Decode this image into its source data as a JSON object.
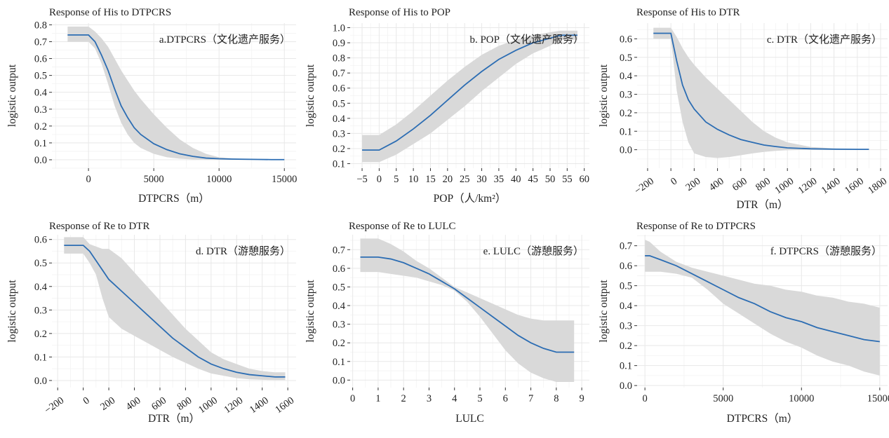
{
  "chart_data": [
    {
      "type": "line",
      "title": "Response of His to DTPCRS",
      "annotation": "a.DTPCRS（文化遗产服务）",
      "xlabel": "DTPCRS（m）",
      "ylabel": "logistic output",
      "xlim": [
        -2800,
        15900
      ],
      "ylim": [
        -0.05,
        0.81
      ],
      "xticks": [
        0,
        5000,
        10000,
        15000
      ],
      "xtick_labels": [
        "0",
        "5000",
        "10000",
        "15000"
      ],
      "yticks": [
        0.0,
        0.1,
        0.2,
        0.3,
        0.4,
        0.5,
        0.6,
        0.7,
        0.8
      ],
      "ytick_labels": [
        "0.0",
        "0.1",
        "0.2",
        "0.3",
        "0.4",
        "0.5",
        "0.6",
        "0.7",
        "0.8"
      ],
      "rotate_xticks": false,
      "series": [
        {
          "x": [
            -1600,
            0,
            500,
            1000,
            1500,
            2000,
            2500,
            3000,
            3500,
            4000,
            5000,
            6000,
            7000,
            8000,
            9000,
            10000,
            11000,
            12000,
            13000,
            14000,
            15000
          ],
          "y": [
            0.74,
            0.74,
            0.7,
            0.62,
            0.53,
            0.42,
            0.32,
            0.25,
            0.19,
            0.15,
            0.095,
            0.06,
            0.035,
            0.02,
            0.01,
            0.006,
            0.004,
            0.003,
            0.002,
            0.001,
            0.001
          ],
          "upper": [
            0.79,
            0.79,
            0.76,
            0.72,
            0.67,
            0.6,
            0.53,
            0.47,
            0.41,
            0.36,
            0.27,
            0.19,
            0.12,
            0.07,
            0.035,
            0.015,
            0.008,
            0.005,
            0.003,
            0.002,
            0.002
          ],
          "lower": [
            0.7,
            0.7,
            0.66,
            0.57,
            0.45,
            0.32,
            0.22,
            0.15,
            0.1,
            0.07,
            0.035,
            0.015,
            0.006,
            0.002,
            0.001,
            0.0,
            0.0,
            0.0,
            0.0,
            0.0,
            0.0
          ]
        }
      ]
    },
    {
      "type": "line",
      "title": "Response of His to POP",
      "annotation": "b. POP（文化遗产服务）",
      "xlabel": "POP（人/km²）",
      "ylabel": "logistic output",
      "xlim": [
        -8.5,
        61.5
      ],
      "ylim": [
        0.07,
        1.03
      ],
      "xticks": [
        -5,
        0,
        5,
        10,
        15,
        20,
        25,
        30,
        35,
        40,
        45,
        50,
        55,
        60
      ],
      "xtick_labels": [
        "−5",
        "0",
        "5",
        "10",
        "15",
        "20",
        "25",
        "30",
        "35",
        "40",
        "45",
        "50",
        "55",
        "60"
      ],
      "yticks": [
        0.1,
        0.2,
        0.3,
        0.4,
        0.5,
        0.6,
        0.7,
        0.8,
        0.9,
        1.0
      ],
      "ytick_labels": [
        "0.1",
        "0.2",
        "0.3",
        "0.4",
        "0.5",
        "0.6",
        "0.7",
        "0.8",
        "0.9",
        "1.0"
      ],
      "rotate_xticks": false,
      "series": [
        {
          "x": [
            -5,
            0,
            5,
            10,
            15,
            20,
            25,
            30,
            35,
            40,
            45,
            50,
            53,
            58
          ],
          "y": [
            0.19,
            0.19,
            0.25,
            0.33,
            0.42,
            0.52,
            0.62,
            0.71,
            0.79,
            0.85,
            0.9,
            0.93,
            0.95,
            0.95
          ],
          "upper": [
            0.29,
            0.29,
            0.36,
            0.45,
            0.55,
            0.65,
            0.74,
            0.82,
            0.88,
            0.92,
            0.95,
            0.97,
            0.98,
            0.98
          ],
          "lower": [
            0.11,
            0.11,
            0.16,
            0.23,
            0.3,
            0.39,
            0.48,
            0.58,
            0.67,
            0.76,
            0.83,
            0.88,
            0.92,
            0.92
          ]
        }
      ]
    },
    {
      "type": "line",
      "title": "Response of His to DTR",
      "annotation": "c. DTR（文化遗产服务）",
      "xlabel": "DTR（m）",
      "ylabel": "logistic output",
      "xlim": [
        -290,
        1860
      ],
      "ylim": [
        -0.1,
        0.685
      ],
      "xticks": [
        -200,
        0,
        200,
        400,
        600,
        800,
        1000,
        1200,
        1400,
        1600,
        1800
      ],
      "xtick_labels": [
        "−200",
        "0",
        "200",
        "400",
        "600",
        "800",
        "1000",
        "1200",
        "1400",
        "1600",
        "1800"
      ],
      "yticks": [
        0.0,
        0.1,
        0.2,
        0.3,
        0.4,
        0.5,
        0.6
      ],
      "ytick_labels": [
        "0.0",
        "0.1",
        "0.2",
        "0.3",
        "0.4",
        "0.5",
        "0.6"
      ],
      "rotate_xticks": true,
      "series": [
        {
          "x": [
            -150,
            0,
            50,
            100,
            150,
            200,
            300,
            400,
            500,
            600,
            700,
            800,
            900,
            1000,
            1200,
            1400,
            1600,
            1700
          ],
          "y": [
            0.63,
            0.63,
            0.48,
            0.35,
            0.27,
            0.22,
            0.15,
            0.11,
            0.08,
            0.055,
            0.04,
            0.025,
            0.017,
            0.01,
            0.005,
            0.003,
            0.002,
            0.002
          ],
          "upper": [
            0.66,
            0.66,
            0.61,
            0.55,
            0.5,
            0.46,
            0.39,
            0.33,
            0.27,
            0.21,
            0.15,
            0.1,
            0.065,
            0.04,
            0.015,
            0.007,
            0.004,
            0.003
          ],
          "lower": [
            0.6,
            0.6,
            0.32,
            0.15,
            0.04,
            -0.02,
            -0.04,
            -0.045,
            -0.04,
            -0.03,
            -0.02,
            -0.012,
            -0.006,
            -0.003,
            0.0,
            0.0,
            0.0,
            0.0
          ]
        }
      ]
    },
    {
      "type": "line",
      "title": "Response of Re to DTR",
      "annotation": "d. DTR（游憩服务）",
      "xlabel": "DTR（m）",
      "ylabel": "logistic output",
      "xlim": [
        -245,
        1665
      ],
      "ylim": [
        -0.03,
        0.62
      ],
      "xticks": [
        -200,
        0,
        200,
        400,
        600,
        800,
        1000,
        1200,
        1400,
        1600
      ],
      "xtick_labels": [
        "−200",
        "0",
        "200",
        "400",
        "600",
        "800",
        "1000",
        "1200",
        "1400",
        "1600"
      ],
      "yticks": [
        0.0,
        0.1,
        0.2,
        0.3,
        0.4,
        0.5,
        0.6
      ],
      "ytick_labels": [
        "0.0",
        "0.1",
        "0.2",
        "0.3",
        "0.4",
        "0.5",
        "0.6"
      ],
      "rotate_xticks": true,
      "series": [
        {
          "x": [
            -150,
            0,
            50,
            100,
            150,
            200,
            300,
            400,
            500,
            600,
            700,
            800,
            900,
            1000,
            1100,
            1200,
            1300,
            1400,
            1500,
            1580
          ],
          "y": [
            0.575,
            0.575,
            0.55,
            0.51,
            0.47,
            0.43,
            0.38,
            0.33,
            0.28,
            0.23,
            0.18,
            0.14,
            0.1,
            0.07,
            0.05,
            0.035,
            0.025,
            0.02,
            0.015,
            0.015
          ],
          "upper": [
            0.61,
            0.61,
            0.58,
            0.57,
            0.56,
            0.56,
            0.52,
            0.46,
            0.4,
            0.34,
            0.28,
            0.22,
            0.17,
            0.12,
            0.09,
            0.07,
            0.05,
            0.04,
            0.035,
            0.035
          ],
          "lower": [
            0.54,
            0.54,
            0.5,
            0.45,
            0.35,
            0.27,
            0.22,
            0.19,
            0.16,
            0.13,
            0.1,
            0.075,
            0.05,
            0.03,
            0.02,
            0.01,
            0.005,
            0.003,
            0.002,
            0.002
          ]
        }
      ]
    },
    {
      "type": "line",
      "title": "Response of Re to LULC",
      "annotation": "e. LULC（游憩服务）",
      "xlabel": "LULC",
      "ylabel": "logistic output",
      "xlim": [
        -0.1,
        9.3
      ],
      "ylim": [
        -0.04,
        0.78
      ],
      "xticks": [
        0,
        1,
        2,
        3,
        4,
        5,
        6,
        7,
        8,
        9
      ],
      "xtick_labels": [
        "0",
        "1",
        "2",
        "3",
        "4",
        "5",
        "6",
        "7",
        "8",
        "9"
      ],
      "yticks": [
        0.0,
        0.1,
        0.2,
        0.3,
        0.4,
        0.5,
        0.6,
        0.7
      ],
      "ytick_labels": [
        "0.0",
        "0.1",
        "0.2",
        "0.3",
        "0.4",
        "0.5",
        "0.6",
        "0.7"
      ],
      "rotate_xticks": false,
      "series": [
        {
          "x": [
            0.3,
            1,
            1.5,
            2,
            2.5,
            3,
            3.5,
            4,
            4.5,
            5,
            5.5,
            6,
            6.5,
            7,
            7.5,
            8,
            8.7
          ],
          "y": [
            0.66,
            0.66,
            0.65,
            0.63,
            0.6,
            0.57,
            0.53,
            0.49,
            0.44,
            0.39,
            0.34,
            0.29,
            0.24,
            0.2,
            0.17,
            0.15,
            0.15
          ],
          "upper": [
            0.76,
            0.76,
            0.73,
            0.69,
            0.64,
            0.6,
            0.55,
            0.5,
            0.47,
            0.44,
            0.41,
            0.38,
            0.35,
            0.33,
            0.32,
            0.32,
            0.32
          ],
          "lower": [
            0.58,
            0.58,
            0.57,
            0.56,
            0.55,
            0.53,
            0.51,
            0.48,
            0.42,
            0.34,
            0.25,
            0.16,
            0.09,
            0.04,
            0.01,
            -0.01,
            -0.01
          ]
        }
      ]
    },
    {
      "type": "line",
      "title": "Response of Re to DTPCRS",
      "annotation": "f. DTPCRS（游憩服务）",
      "xlabel": "DTPCRS（m）",
      "ylabel": "logistic output",
      "xlim": [
        -500,
        15500
      ],
      "ylim": [
        -0.01,
        0.755
      ],
      "xticks": [
        0,
        5000,
        10000,
        15000
      ],
      "xtick_labels": [
        "0",
        "5000",
        "10000",
        "15000"
      ],
      "yticks": [
        0.0,
        0.1,
        0.2,
        0.3,
        0.4,
        0.5,
        0.6,
        0.7
      ],
      "ytick_labels": [
        "0.0",
        "0.1",
        "0.2",
        "0.3",
        "0.4",
        "0.5",
        "0.6",
        "0.7"
      ],
      "rotate_xticks": false,
      "series": [
        {
          "x": [
            0,
            300,
            1000,
            2000,
            3000,
            4000,
            5000,
            6000,
            7000,
            8000,
            9000,
            10000,
            11000,
            12000,
            13000,
            14000,
            15000
          ],
          "y": [
            0.65,
            0.65,
            0.63,
            0.6,
            0.56,
            0.52,
            0.48,
            0.44,
            0.41,
            0.37,
            0.34,
            0.32,
            0.29,
            0.27,
            0.25,
            0.23,
            0.22
          ],
          "upper": [
            0.73,
            0.72,
            0.67,
            0.62,
            0.59,
            0.57,
            0.55,
            0.53,
            0.51,
            0.5,
            0.48,
            0.47,
            0.45,
            0.44,
            0.42,
            0.41,
            0.39
          ],
          "lower": [
            0.57,
            0.57,
            0.57,
            0.56,
            0.54,
            0.48,
            0.41,
            0.36,
            0.31,
            0.26,
            0.22,
            0.19,
            0.15,
            0.12,
            0.1,
            0.07,
            0.05
          ]
        }
      ]
    }
  ]
}
